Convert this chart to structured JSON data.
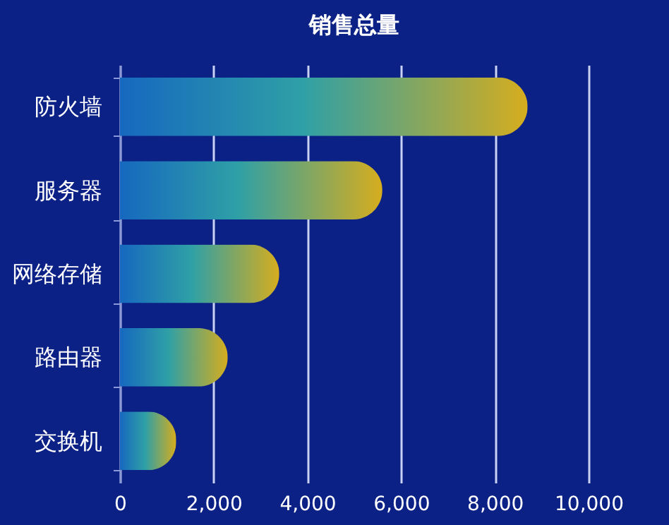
{
  "chart_data": {
    "type": "bar",
    "orientation": "horizontal",
    "title": "销售总量",
    "categories": [
      "防火墙",
      "服务器",
      "网络存储",
      "路由器",
      "交换机"
    ],
    "series": [
      {
        "values": [
          8700,
          5600,
          3400,
          2300,
          1200
        ]
      }
    ],
    "xlim": [
      0,
      10000
    ],
    "xticks": [
      {
        "value": 0,
        "label": "0"
      },
      {
        "value": 2000,
        "label": "2,000"
      },
      {
        "value": 4000,
        "label": "4,000"
      },
      {
        "value": 6000,
        "label": "6,000"
      },
      {
        "value": 8000,
        "label": "8,000"
      },
      {
        "value": 10000,
        "label": "10,000"
      }
    ],
    "grid": "x"
  }
}
